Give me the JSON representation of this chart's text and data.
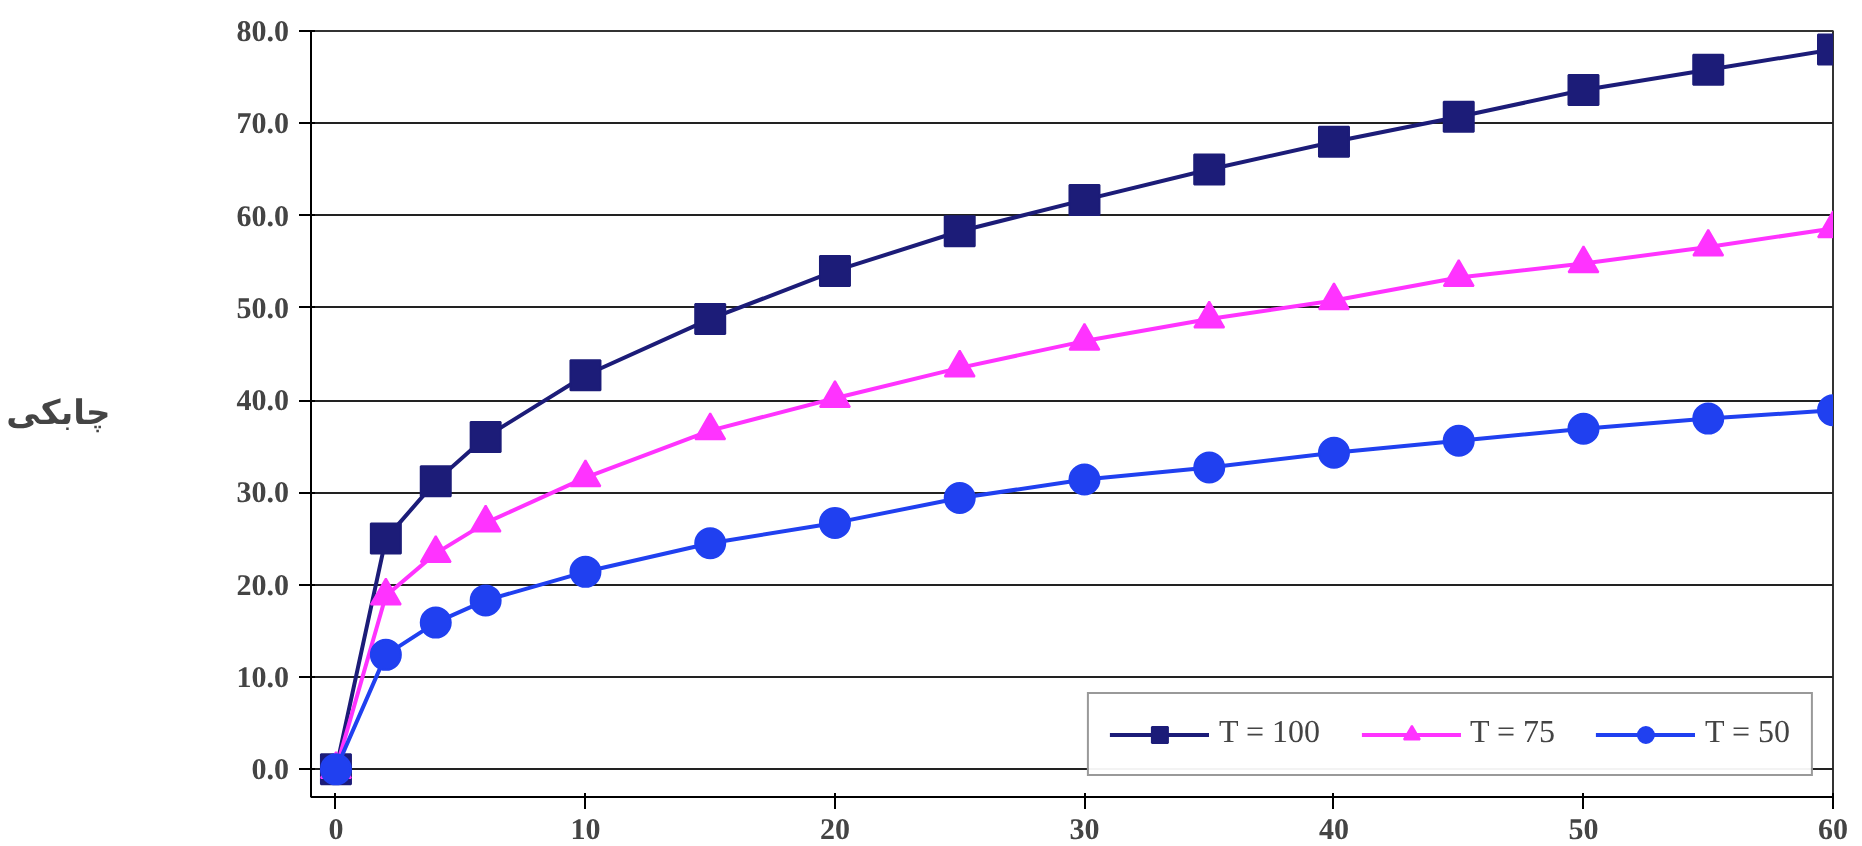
{
  "chart_data": {
    "type": "line",
    "ylabel": "چابکی",
    "x": [
      0,
      2,
      4,
      6,
      10,
      15,
      20,
      25,
      30,
      35,
      40,
      45,
      50,
      55,
      60
    ],
    "series": [
      {
        "name": "T = 100",
        "color": "#1c1c78",
        "marker": "square",
        "values": [
          0,
          25,
          31.2,
          36,
          42.7,
          48.8,
          54,
          58.3,
          61.7,
          65,
          68,
          70.7,
          73.6,
          75.8,
          78
        ]
      },
      {
        "name": "T = 75",
        "color": "#ff33ff",
        "marker": "triangle",
        "values": [
          0,
          18.8,
          23.4,
          26.7,
          31.6,
          36.7,
          40.2,
          43.5,
          46.4,
          48.8,
          50.8,
          53.3,
          54.8,
          56.6,
          58.6
        ]
      },
      {
        "name": "T = 50",
        "color": "#2040f0",
        "marker": "circle",
        "values": [
          0,
          12.4,
          15.9,
          18.3,
          21.4,
          24.5,
          26.7,
          29.4,
          31.4,
          32.7,
          34.3,
          35.6,
          36.9,
          38,
          38.9
        ]
      }
    ],
    "xlim": [
      -1,
      60
    ],
    "ylim": [
      -3,
      80
    ],
    "xticks": [
      0,
      10,
      20,
      30,
      40,
      50,
      60
    ],
    "yticks": [
      {
        "value": 0,
        "label": "0.0"
      },
      {
        "value": 10,
        "label": "10.0"
      },
      {
        "value": 20,
        "label": "20.0"
      },
      {
        "value": 30,
        "label": "30.0"
      },
      {
        "value": 40,
        "label": "40.0"
      },
      {
        "value": 50,
        "label": "50.0"
      },
      {
        "value": 60,
        "label": "60.0"
      },
      {
        "value": 70,
        "label": "70.0"
      },
      {
        "value": 80,
        "label": "80.0"
      }
    ],
    "grid": "y",
    "legend": "bottom right",
    "line_style": "solid"
  }
}
